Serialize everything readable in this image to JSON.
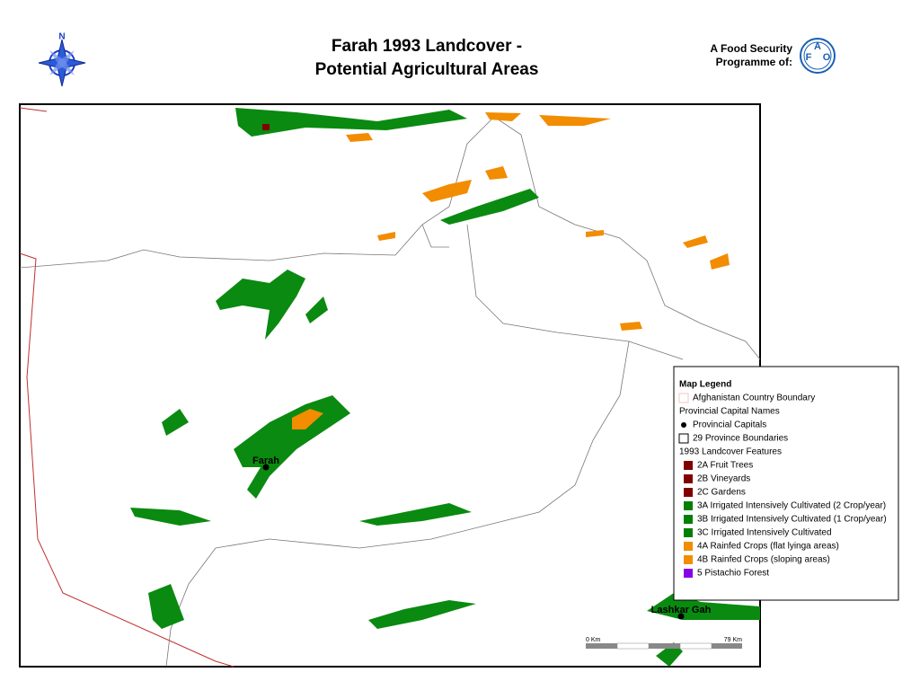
{
  "header": {
    "title_lines": [
      "Farah 1993 Landcover -",
      "Potential Agricultural Areas"
    ],
    "north": "N",
    "sponsor_lines": [
      "A Food Security",
      "Programme of:"
    ],
    "logo_letters": [
      "F",
      "A",
      "O"
    ]
  },
  "map": {
    "places": [
      {
        "label": "Farah"
      },
      {
        "label": "Lashkar Gah"
      }
    ],
    "scale": {
      "start": "0 Km",
      "end": "79 Km"
    }
  },
  "legend": {
    "title": "Map Legend",
    "items": [
      {
        "label": "Afghanistan Country Boundary",
        "symbol": "outline",
        "color": "#f4c6c6"
      },
      {
        "label": "Provincial Capital Names",
        "symbol": "none"
      },
      {
        "label": "Provincial Capitals",
        "symbol": "dot",
        "color": "#000000"
      },
      {
        "label": "29 Province Boundaries",
        "symbol": "outline",
        "color": "#000000"
      },
      {
        "label": "1993 Landcover Features",
        "symbol": "none"
      },
      {
        "label": "2A Fruit Trees",
        "symbol": "fill",
        "color": "#800000"
      },
      {
        "label": "2B Vineyards",
        "symbol": "fill",
        "color": "#800000"
      },
      {
        "label": "2C Gardens",
        "symbol": "fill",
        "color": "#800000"
      },
      {
        "label": "3A Irrigated Intensively Cultivated (2 Crop/year)",
        "symbol": "fill",
        "color": "#008000"
      },
      {
        "label": "3B Irrigated Intensively Cultivated (1 Crop/year)",
        "symbol": "fill",
        "color": "#008000"
      },
      {
        "label": "3C Irrigated Intensively Cultivated",
        "symbol": "fill",
        "color": "#008000"
      },
      {
        "label": "4A Rainfed Crops (flat lyinga areas)",
        "symbol": "fill",
        "color": "#f28c00"
      },
      {
        "label": "4B Rainfed Crops (sloping areas)",
        "symbol": "fill",
        "color": "#f28c00"
      },
      {
        "label": "5 Pistachio Forest",
        "symbol": "fill",
        "color": "#8a00e6"
      }
    ]
  }
}
